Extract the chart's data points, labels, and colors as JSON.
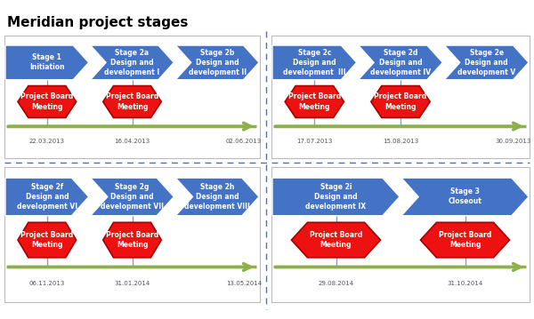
{
  "title": "Meridian project stages",
  "title_fontsize": 11,
  "bg_color": "#ffffff",
  "arrow_color": "#4472C4",
  "hexagon_color": "#EE1111",
  "timeline_color": "#8DB04C",
  "connector_color": "#7BA7C7",
  "quad_border_color": "#cccccc",
  "divider_color": "#4472C4",
  "quadrants": [
    {
      "stages": [
        {
          "label": "Stage 1\nInitiation",
          "first": true
        },
        {
          "label": "Stage 2a\nDesign and\ndevelopment I",
          "first": false
        },
        {
          "label": "Stage 2b\nDesign and\ndevelopment II",
          "first": false
        }
      ],
      "meeting_stage_indices": [
        0,
        1
      ],
      "dates": [
        "22.03.2013",
        "16.04.2013",
        "02.06.2013"
      ],
      "date_stage_indices": [
        0,
        1,
        -1
      ]
    },
    {
      "stages": [
        {
          "label": "Stage 2c\nDesign and\ndevelopment  III",
          "first": true
        },
        {
          "label": "Stage 2d\nDesign and\ndevelopment IV",
          "first": false
        },
        {
          "label": "Stage 2e\nDesign and\ndevelopment V",
          "first": false
        }
      ],
      "meeting_stage_indices": [
        0,
        1
      ],
      "dates": [
        "17.07.2013",
        "15.08.2013",
        "30.09.2013"
      ],
      "date_stage_indices": [
        0,
        1,
        -1
      ]
    },
    {
      "stages": [
        {
          "label": "Stage 2f\nDesign and\ndevelopment VI",
          "first": true
        },
        {
          "label": "Stage 2g\nDesign and\ndevelopment VII",
          "first": false
        },
        {
          "label": "Stage 2h\nDesign and\ndevelopment VIII",
          "first": false
        }
      ],
      "meeting_stage_indices": [
        0,
        1
      ],
      "dates": [
        "06.11.2013",
        "31.01.2014",
        "13.05.2014"
      ],
      "date_stage_indices": [
        0,
        1,
        -1
      ]
    },
    {
      "stages": [
        {
          "label": "Stage 2i\nDesign and\ndevelopment IX",
          "first": true
        },
        {
          "label": "Stage 3\nCloseout",
          "first": false
        }
      ],
      "meeting_stage_indices": [
        0,
        1
      ],
      "dates": [
        "29.08.2014",
        "31.10.2014"
      ],
      "date_stage_indices": [
        0,
        1
      ]
    }
  ]
}
